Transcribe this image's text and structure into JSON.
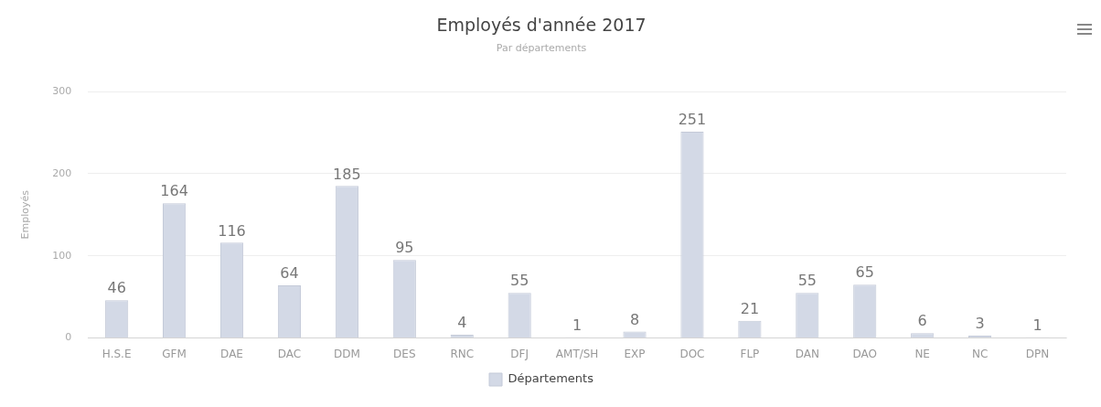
{
  "chart_data": {
    "type": "bar",
    "title": "Employés d'année 2017",
    "subtitle": "Par départements",
    "ylabel": "Employés",
    "categories": [
      "H.S.E",
      "GFM",
      "DAE",
      "DAC",
      "DDM",
      "DES",
      "RNC",
      "DFJ",
      "AMT/SH",
      "EXP",
      "DOC",
      "FLP",
      "DAN",
      "DAO",
      "NE",
      "NC",
      "DPN"
    ],
    "series": [
      {
        "name": "Départements",
        "color": "#d3d9e6",
        "values": [
          46,
          164,
          116,
          64,
          185,
          95,
          4,
          55,
          1,
          8,
          251,
          21,
          55,
          65,
          6,
          3,
          1
        ]
      }
    ],
    "ylim": [
      0,
      300
    ],
    "yticks": [
      0,
      100,
      200,
      300
    ],
    "grid": "y",
    "legend": "bottom",
    "data_labels": true
  }
}
